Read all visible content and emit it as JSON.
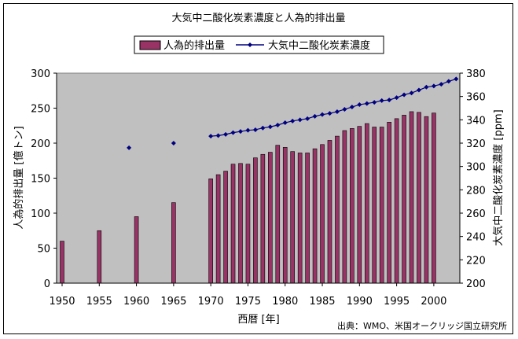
{
  "chart_data": {
    "type": "bar+line",
    "title": "大気中二酸化炭素濃度と人為的排出量",
    "xlabel": "西暦 [年]",
    "ylabel_left": "人為的排出量 [億トン]",
    "ylabel_right": "大気中二酸化炭素濃度 [ppm]",
    "ylim_left": [
      0,
      300
    ],
    "ylim_right": [
      200,
      380
    ],
    "xlim": [
      1950,
      2003
    ],
    "x_ticks": [
      1950,
      1955,
      1960,
      1965,
      1970,
      1975,
      1980,
      1985,
      1990,
      1995,
      2000
    ],
    "y_left_ticks": [
      0,
      50,
      100,
      150,
      200,
      250,
      300
    ],
    "y_right_ticks": [
      200,
      220,
      240,
      260,
      280,
      300,
      320,
      340,
      360,
      380
    ],
    "legend_position": "top",
    "plot_background": "#c0c0c0",
    "source": "出典：WMO、米国オークリッジ国立研究所",
    "series": [
      {
        "name": "人為的排出量",
        "type": "bar",
        "axis": "left",
        "color": "#993366",
        "x": [
          1950,
          1955,
          1960,
          1965,
          1970,
          1971,
          1972,
          1973,
          1974,
          1975,
          1976,
          1977,
          1978,
          1979,
          1980,
          1981,
          1982,
          1983,
          1984,
          1985,
          1986,
          1987,
          1988,
          1989,
          1990,
          1991,
          1992,
          1993,
          1994,
          1995,
          1996,
          1997,
          1998,
          1999,
          2000
        ],
        "values": [
          60,
          75,
          95,
          115,
          149,
          155,
          160,
          170,
          171,
          170,
          179,
          184,
          187,
          197,
          194,
          188,
          186,
          186,
          192,
          198,
          204,
          210,
          218,
          221,
          224,
          228,
          223,
          223,
          230,
          235,
          240,
          245,
          244,
          238,
          243
        ]
      },
      {
        "name": "大気中二酸化炭素濃度",
        "type": "line",
        "axis": "right",
        "color": "#000080",
        "marker": "diamond",
        "x": [
          1959,
          1965,
          1970,
          1971,
          1972,
          1973,
          1974,
          1975,
          1976,
          1977,
          1978,
          1979,
          1980,
          1981,
          1982,
          1983,
          1984,
          1985,
          1986,
          1987,
          1988,
          1989,
          1990,
          1991,
          1992,
          1993,
          1994,
          1995,
          1996,
          1997,
          1998,
          1999,
          2000,
          2001,
          2002,
          2003
        ],
        "values": [
          316,
          320,
          326,
          326.5,
          327.5,
          329,
          330,
          331,
          331.5,
          333,
          334,
          335.5,
          337.5,
          339,
          340,
          341,
          343,
          344.5,
          345.5,
          347,
          349,
          351,
          353,
          354,
          355,
          356.5,
          357,
          359,
          361.5,
          363,
          365.5,
          368,
          369,
          370.5,
          373,
          375
        ]
      }
    ]
  }
}
